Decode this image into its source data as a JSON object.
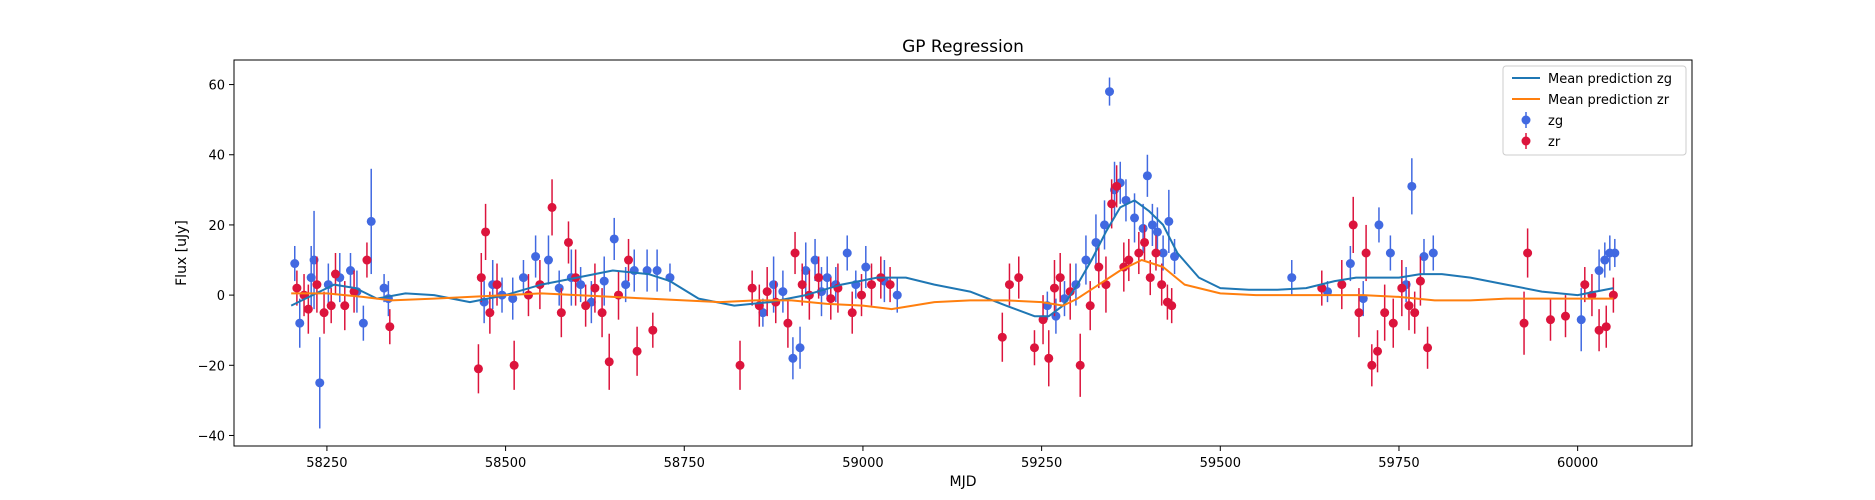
{
  "chart_data": {
    "type": "scatter",
    "title": "GP Regression",
    "xlabel": "MJD",
    "ylabel": "Flux [uJy]",
    "xlim": [
      58120,
      60160
    ],
    "ylim": [
      -43,
      67
    ],
    "xticks": [
      58250,
      58500,
      58750,
      59000,
      59250,
      59500,
      59750,
      60000
    ],
    "yticks": [
      -40,
      -20,
      0,
      20,
      40,
      60
    ],
    "grid": false,
    "legend_position": "top-right",
    "colors": {
      "zg_line": "#1f77b4",
      "zr_line": "#ff7f0e",
      "zg_points": "#4169e1",
      "zr_points": "#dc143c"
    },
    "series": [
      {
        "name": "Mean prediction zg",
        "kind": "line",
        "x": [
          58200,
          58230,
          58260,
          58290,
          58320,
          58360,
          58400,
          58450,
          58500,
          58550,
          58600,
          58650,
          58700,
          58730,
          58770,
          58820,
          58870,
          58920,
          58970,
          59020,
          59060,
          59100,
          59150,
          59200,
          59240,
          59260,
          59280,
          59300,
          59320,
          59340,
          59360,
          59380,
          59400,
          59420,
          59440,
          59470,
          59500,
          59540,
          59580,
          59620,
          59660,
          59690,
          59720,
          59750,
          59780,
          59810,
          59850,
          59900,
          59950,
          60000,
          60050
        ],
        "y": [
          -3,
          0,
          3,
          2,
          -1,
          0.5,
          0,
          -2,
          0,
          3,
          5,
          7,
          6,
          4,
          -1,
          -3,
          -2,
          0,
          3,
          5,
          5,
          3,
          1,
          -3,
          -6,
          -6,
          -3,
          3,
          10,
          18,
          25,
          27,
          24,
          20,
          12,
          5,
          2,
          1.5,
          1.5,
          2,
          4,
          5,
          5,
          5,
          6,
          6,
          5,
          3,
          1,
          0,
          2
        ]
      },
      {
        "name": "Mean prediction zr",
        "kind": "line",
        "x": [
          58200,
          58250,
          58300,
          58340,
          58400,
          58450,
          58500,
          58550,
          58600,
          58650,
          58700,
          58750,
          58800,
          58850,
          58900,
          58950,
          59000,
          59040,
          59100,
          59150,
          59200,
          59250,
          59280,
          59300,
          59330,
          59360,
          59390,
          59420,
          59450,
          59500,
          59550,
          59600,
          59650,
          59700,
          59750,
          59800,
          59850,
          59900,
          59950,
          60000,
          60050
        ],
        "y": [
          0.5,
          0.5,
          -0.5,
          -1.5,
          -1,
          -0.5,
          0,
          0.5,
          0,
          -0.5,
          -1,
          -1.5,
          -2,
          -1.5,
          -1.5,
          -2.5,
          -3,
          -4,
          -2,
          -1.5,
          -1.5,
          -2,
          -3,
          -1,
          3,
          7,
          10,
          8,
          3,
          0.5,
          0,
          0,
          0,
          0,
          -0.5,
          -1.5,
          -1.5,
          -1,
          -1,
          -1,
          -1
        ]
      },
      {
        "name": "zg",
        "kind": "errorbar",
        "x": [
          58205,
          58212,
          58228,
          58232,
          58240,
          58252,
          58268,
          58283,
          58292,
          58301,
          58312,
          58330,
          58336,
          58470,
          58482,
          58495,
          58510,
          58525,
          58542,
          58560,
          58575,
          58592,
          58605,
          58620,
          58638,
          58652,
          58668,
          58680,
          58698,
          58712,
          58730,
          58860,
          58875,
          58888,
          58902,
          58912,
          58920,
          58933,
          58942,
          58950,
          58962,
          58978,
          58990,
          59004,
          59030,
          59048,
          59258,
          59270,
          59282,
          59298,
          59312,
          59326,
          59338,
          59345,
          59352,
          59360,
          59368,
          59380,
          59392,
          59398,
          59405,
          59412,
          59420,
          59428,
          59436,
          59600,
          59650,
          59682,
          59700,
          59722,
          59738,
          59760,
          59768,
          59785,
          59798,
          60005,
          60030,
          60038,
          60045,
          60052
        ],
        "y": [
          9,
          -8,
          5,
          10,
          -25,
          3,
          5,
          7,
          1,
          -8,
          21,
          2,
          -1,
          -2,
          3,
          0,
          -1,
          5,
          11,
          10,
          2,
          5,
          3,
          -2,
          4,
          16,
          3,
          7,
          7,
          7,
          5,
          -5,
          3,
          1,
          -18,
          -15,
          7,
          10,
          1,
          5,
          3,
          12,
          3,
          8,
          4,
          0,
          -3,
          -6,
          -1,
          3,
          10,
          15,
          20,
          58,
          30,
          32,
          27,
          22,
          19,
          34,
          20,
          18,
          12,
          21,
          11,
          5,
          1,
          9,
          -1,
          20,
          12,
          3,
          31,
          11,
          12,
          -7,
          7,
          10,
          12,
          12
        ],
        "yerr": [
          5,
          7,
          9,
          14,
          13,
          6,
          7,
          5,
          6,
          5,
          15,
          4,
          5,
          6,
          7,
          5,
          6,
          5,
          6,
          7,
          5,
          8,
          5,
          6,
          7,
          6,
          5,
          6,
          6,
          6,
          4,
          4,
          8,
          6,
          6,
          6,
          8,
          6,
          7,
          6,
          5,
          5,
          4,
          6,
          6,
          5,
          4,
          5,
          5,
          6,
          7,
          8,
          7,
          4,
          8,
          6,
          6,
          7,
          7,
          6,
          6,
          7,
          5,
          9,
          5,
          5,
          3,
          5,
          5,
          5,
          5,
          5,
          8,
          5,
          5,
          9,
          6,
          5,
          5,
          4
        ]
      },
      {
        "name": "zr",
        "kind": "errorbar",
        "x": [
          58208,
          58218,
          58224,
          58236,
          58246,
          58256,
          58262,
          58275,
          58288,
          58306,
          58338,
          58462,
          58466,
          58472,
          58478,
          58488,
          58512,
          58532,
          58548,
          58565,
          58578,
          58588,
          58598,
          58612,
          58625,
          58635,
          58645,
          58658,
          58672,
          58684,
          58706,
          58828,
          58845,
          58855,
          58866,
          58878,
          58895,
          58905,
          58915,
          58925,
          58938,
          58955,
          58965,
          58985,
          58998,
          59012,
          59025,
          59038,
          59195,
          59205,
          59218,
          59240,
          59252,
          59260,
          59268,
          59276,
          59290,
          59304,
          59318,
          59330,
          59340,
          59348,
          59355,
          59365,
          59372,
          59386,
          59394,
          59402,
          59410,
          59418,
          59426,
          59432,
          59642,
          59670,
          59686,
          59694,
          59704,
          59712,
          59720,
          59730,
          59742,
          59754,
          59764,
          59772,
          59780,
          59790,
          59925,
          59930,
          59962,
          59983,
          60010,
          60020,
          60030,
          60040,
          60050
        ],
        "y": [
          2,
          0,
          -4,
          3,
          -5,
          -3,
          6,
          -3,
          1,
          10,
          -9,
          -21,
          5,
          18,
          -5,
          3,
          -20,
          0,
          3,
          25,
          -5,
          15,
          5,
          -3,
          2,
          -5,
          -19,
          0,
          10,
          -16,
          -10,
          -20,
          2,
          -3,
          1,
          -2,
          -8,
          12,
          3,
          0,
          5,
          -1,
          2,
          -5,
          0,
          3,
          5,
          3,
          -12,
          3,
          5,
          -15,
          -7,
          -18,
          2,
          5,
          1,
          -20,
          -3,
          8,
          3,
          26,
          31,
          8,
          10,
          12,
          15,
          5,
          12,
          3,
          -2,
          -3,
          2,
          3,
          20,
          -5,
          12,
          -20,
          -16,
          -5,
          -8,
          2,
          -3,
          -5,
          4,
          -15,
          -8,
          12,
          -7,
          -6,
          3,
          0,
          -10,
          -9,
          0
        ],
        "yerr": [
          5,
          6,
          7,
          8,
          6,
          5,
          6,
          7,
          6,
          5,
          5,
          7,
          7,
          8,
          6,
          6,
          7,
          6,
          7,
          8,
          7,
          6,
          8,
          6,
          7,
          7,
          8,
          7,
          6,
          7,
          5,
          7,
          5,
          6,
          7,
          6,
          7,
          6,
          6,
          7,
          6,
          6,
          7,
          6,
          6,
          6,
          6,
          5,
          7,
          6,
          6,
          5,
          7,
          8,
          8,
          7,
          8,
          9,
          7,
          6,
          8,
          7,
          6,
          7,
          6,
          6,
          5,
          5,
          5,
          6,
          5,
          5,
          5,
          7,
          8,
          7,
          8,
          6,
          6,
          8,
          7,
          8,
          7,
          6,
          7,
          6,
          9,
          7,
          6,
          6,
          5,
          6,
          6,
          6,
          5
        ]
      }
    ]
  }
}
